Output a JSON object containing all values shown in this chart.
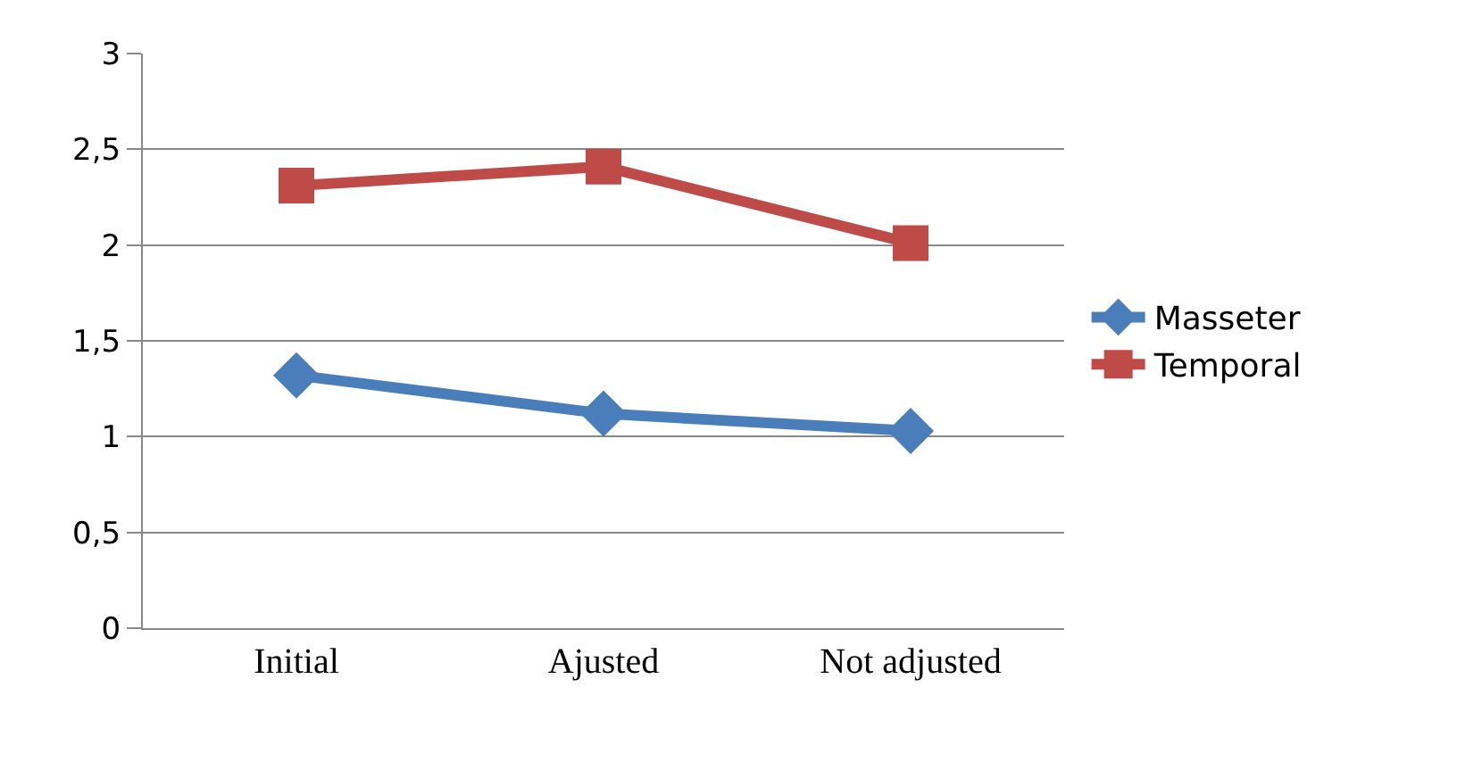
{
  "chart_data": {
    "type": "line",
    "categories": [
      "Initial",
      "Ajusted",
      "Not adjusted"
    ],
    "series": [
      {
        "name": "Masseter",
        "color": "#4a7ebb",
        "marker": "diamond",
        "values": [
          1.32,
          1.12,
          1.03
        ]
      },
      {
        "name": "Temporal",
        "color": "#be4b48",
        "marker": "square",
        "values": [
          2.31,
          2.41,
          2.01
        ]
      }
    ],
    "ylim": [
      0,
      3
    ],
    "yticks": [
      0,
      {
        "value": 0.5,
        "label": "0,5"
      },
      1,
      {
        "value": 1.5,
        "label": "1,5"
      },
      2,
      {
        "value": 2.5,
        "label": "2,5"
      },
      3
    ],
    "grid": "y",
    "legend": "right"
  }
}
